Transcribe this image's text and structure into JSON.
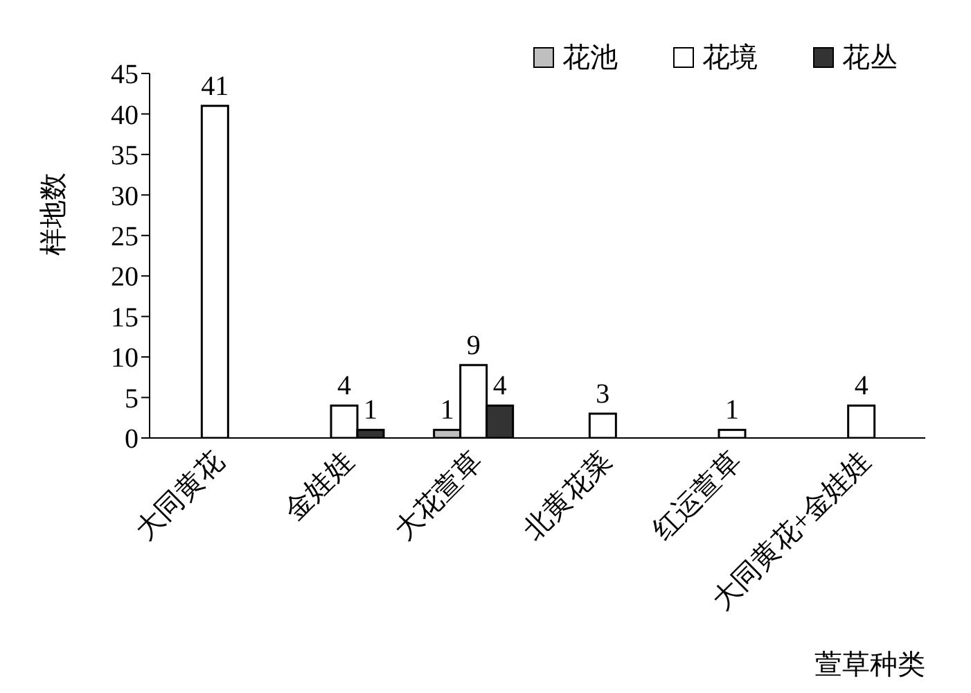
{
  "chart_data": {
    "type": "bar",
    "xlabel": "萱草种类",
    "ylabel": "样地数",
    "categories": [
      "大同黄花",
      "金娃娃",
      "大花萱草",
      "北黄花菜",
      "红运萱草",
      "大同黄花+金娃娃"
    ],
    "series": [
      {
        "name": "花池",
        "color": "#bfbfbf",
        "values": [
          null,
          null,
          1,
          null,
          null,
          null
        ],
        "value_labels": [
          null,
          null,
          "1",
          null,
          null,
          null
        ]
      },
      {
        "name": "花境",
        "color": "#ffffff",
        "values": [
          41,
          4,
          9,
          3,
          1,
          4
        ],
        "value_labels": [
          "41",
          "4",
          "9",
          "3",
          "1",
          "4"
        ]
      },
      {
        "name": "花丛",
        "color": "#333333",
        "values": [
          null,
          1,
          4,
          null,
          null,
          null
        ],
        "value_labels": [
          null,
          "1",
          "4",
          null,
          null,
          null
        ]
      }
    ],
    "ylim": [
      0,
      45
    ],
    "yticks": [
      0,
      5,
      10,
      15,
      20,
      25,
      30,
      35,
      40,
      45
    ],
    "grid": false,
    "legend": "top right"
  }
}
